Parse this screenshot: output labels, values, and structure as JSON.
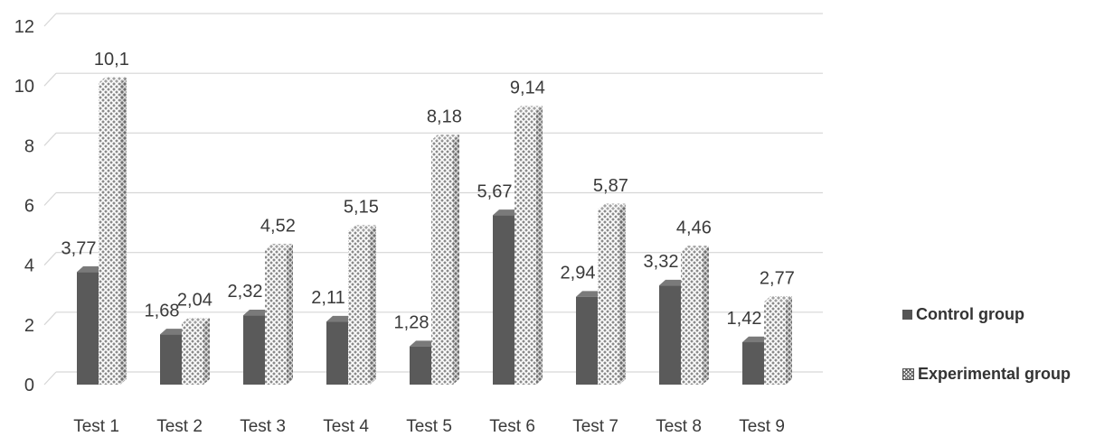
{
  "chart_data": {
    "type": "bar",
    "title": "",
    "xlabel": "",
    "ylabel": "",
    "categories": [
      "Test 1",
      "Test 2",
      "Test 3",
      "Test 4",
      "Test 5",
      "Test 6",
      "Test 7",
      "Test 8",
      "Test 9"
    ],
    "series": [
      {
        "name": "Control group",
        "values": [
          3.77,
          1.68,
          2.32,
          2.11,
          1.28,
          5.67,
          2.94,
          3.32,
          1.42
        ],
        "labels": [
          "3,77",
          "1,68",
          "2,32",
          "2,11",
          "1,28",
          "5,67",
          "2,94",
          "3,32",
          "1,42"
        ],
        "color": "#555555"
      },
      {
        "name": "Experimental group",
        "values": [
          10.1,
          2.04,
          4.52,
          5.15,
          8.18,
          9.14,
          5.87,
          4.46,
          2.77
        ],
        "labels": [
          "10,1",
          "2,04",
          "4,52",
          "5,15",
          "8,18",
          "9,14",
          "5,87",
          "4,46",
          "2,77"
        ],
        "color": "#6a6a6a"
      }
    ],
    "ylim": [
      0,
      12
    ],
    "yticks": [
      "0",
      "2",
      "4",
      "6",
      "8",
      "10",
      "12"
    ],
    "grid": true,
    "legend": "right",
    "style": "3d-bar"
  }
}
